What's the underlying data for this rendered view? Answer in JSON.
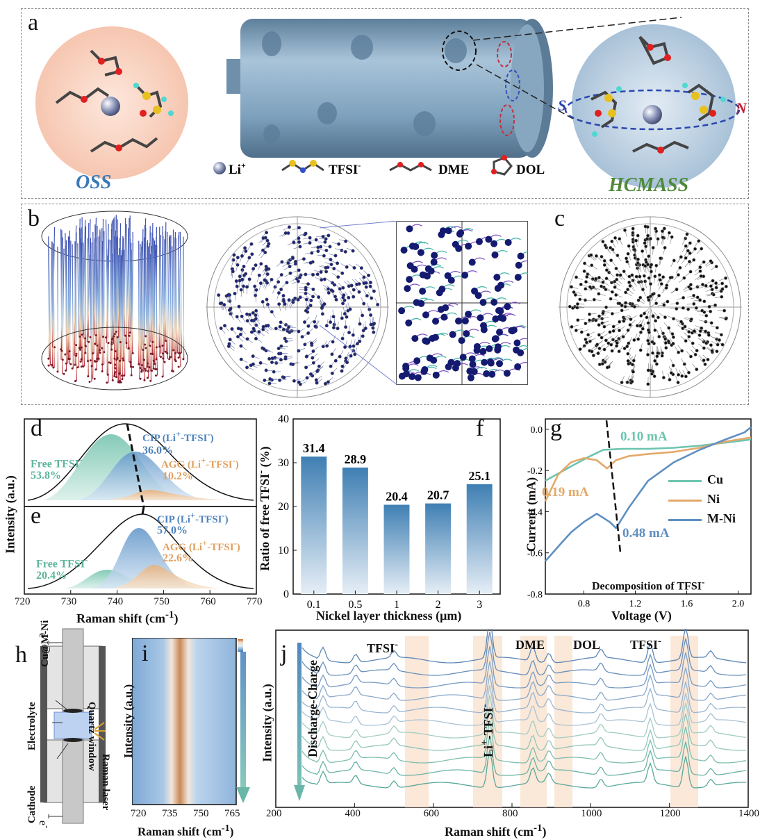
{
  "panel_a": {
    "letter": "a",
    "left_label": "OSS",
    "right_label": "HCMASS",
    "legend": {
      "li": "Li",
      "li_sup": "+",
      "tfsi": "TFSI",
      "tfsi_sup": "-",
      "dme": "DME",
      "dol": "DOL"
    },
    "pole_s": "S",
    "pole_n": "N",
    "colors": {
      "oss": "#3a78b8",
      "hcmass": "#4e8a3a",
      "cylinder": "#6f95b5"
    }
  },
  "panel_b": {
    "letter": "b"
  },
  "panel_c": {
    "letter": "c"
  },
  "panel_d": {
    "letter": "d",
    "free_label": "Free TFSI",
    "free_sup": "-",
    "free_pct": "53.8%",
    "cip_label": "CIP (Li",
    "cip_mid": "-TFSI",
    "cip_pct": "36.0%",
    "agg_label": "AGG (Li",
    "agg_mid": "-TFSI",
    "agg_pct": "10.2%"
  },
  "panel_e": {
    "letter": "e",
    "free_label": "Free TFSI",
    "free_sup": "-",
    "free_pct": "20.4%",
    "cip_label": "CIP (Li",
    "cip_mid": "-TFSI",
    "cip_pct": "57.0%",
    "agg_label": "AGG (Li",
    "agg_mid": "-TFSI",
    "agg_pct": "22.6%"
  },
  "panel_de_axes": {
    "ylabel": "Intensity (a.u.)",
    "xlabel": "Raman shift (cm",
    "xlabel_sup": "-1",
    "xlabel_end": ")",
    "xticks": [
      "720",
      "730",
      "740",
      "750",
      "760",
      "770"
    ]
  },
  "panel_f": {
    "letter": "f",
    "ylabel": "Ratio of free TFSI",
    "ylabel_sup": "-",
    "ylabel_end": " (%)",
    "xlabel": "Nickel layer thickness (μm)"
  },
  "panel_g": {
    "letter": "g",
    "ylabel": "Current (mA)",
    "xlabel": "Voltage (V)",
    "xticks": [
      "0.8",
      "1.2",
      "1.6",
      "2.0"
    ],
    "yticks": [
      "0.0",
      "-0.2",
      "-0.4",
      "-0.6",
      "-0.8"
    ],
    "ann_cu": "0.10 mA",
    "ann_ni": "0.19 mA",
    "ann_mni": "0.48 mA",
    "decomp": "Decomposition of TFSI",
    "decomp_sup": "-",
    "legend": [
      "Cu",
      "Ni",
      "M-Ni"
    ],
    "colors": {
      "cu": "#6cc4ae",
      "ni": "#e3a96a",
      "mni": "#5f8fc1"
    }
  },
  "panel_h": {
    "letter": "h",
    "labels": [
      "Cu@M-Ni",
      "Electrolyte",
      "Cathode",
      "Quartz window",
      "Raman laser"
    ],
    "e_top": "e",
    "e_bottom": "e",
    "e_sup": "-"
  },
  "panel_i": {
    "letter": "i",
    "ylabel": "Intensity (a.u.)",
    "xlabel": "Raman shift (cm",
    "xlabel_sup": "-1",
    "xlabel_end": ")",
    "xticks": [
      "720",
      "735",
      "750",
      "765"
    ]
  },
  "panel_j": {
    "letter": "j",
    "ylabel": "Intensity (a.u.)",
    "xlabel": "Raman shift (cm",
    "xlabel_sup": "-1",
    "xlabel_end": ")",
    "xticks": [
      "200",
      "400",
      "600",
      "800",
      "1000",
      "1200",
      "1400"
    ],
    "arrow_label": "Discharge-Charge",
    "peak_labels": {
      "tfsi1": "TFSI",
      "dme": "DME",
      "dol": "DOL",
      "tfsi2": "TFSI",
      "litfsi": "Li",
      "sup_minus": "-",
      "sup_plus": "+"
    }
  },
  "chart_data": [
    {
      "type": "bar",
      "panel": "f",
      "categories": [
        "0.1",
        "0.5",
        "1",
        "2",
        "3"
      ],
      "values": [
        31.4,
        28.9,
        20.4,
        20.7,
        25.1
      ],
      "value_labels": [
        "31.4",
        "28.9",
        "20.4",
        "20.7",
        "25.1"
      ],
      "ylim": [
        0,
        40
      ],
      "yticks": [
        "0",
        "10",
        "20",
        "30",
        "40"
      ],
      "color": "#3f7fb3"
    },
    {
      "type": "line",
      "panel": "g",
      "xlim": [
        0.5,
        2.1
      ],
      "ylim": [
        -0.8,
        0.05
      ],
      "series": [
        {
          "name": "Cu",
          "x": [
            0.5,
            0.7,
            0.85,
            0.95,
            1.1,
            1.3,
            1.5,
            1.7,
            1.9,
            2.1
          ],
          "y": [
            -0.25,
            -0.18,
            -0.13,
            -0.1,
            -0.095,
            -0.095,
            -0.09,
            -0.08,
            -0.065,
            -0.05
          ]
        },
        {
          "name": "Ni",
          "x": [
            0.5,
            0.6,
            0.7,
            0.8,
            0.9,
            0.98,
            1.05,
            1.15,
            1.3,
            1.5,
            1.7,
            1.9,
            2.1
          ],
          "y": [
            -0.35,
            -0.22,
            -0.16,
            -0.14,
            -0.15,
            -0.19,
            -0.15,
            -0.13,
            -0.12,
            -0.11,
            -0.09,
            -0.06,
            -0.04
          ]
        },
        {
          "name": "M-Ni",
          "x": [
            0.5,
            0.6,
            0.7,
            0.8,
            0.9,
            1.0,
            1.05,
            1.15,
            1.3,
            1.5,
            1.7,
            1.9,
            2.05,
            2.1
          ],
          "y": [
            -0.64,
            -0.57,
            -0.5,
            -0.45,
            -0.41,
            -0.45,
            -0.48,
            -0.38,
            -0.25,
            -0.16,
            -0.1,
            -0.05,
            -0.015,
            0.01
          ]
        }
      ]
    }
  ]
}
